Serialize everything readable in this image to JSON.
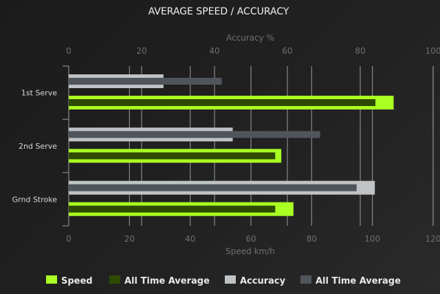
{
  "chart_data": {
    "type": "bar",
    "title": "AVERAGE SPEED / ACCURACY",
    "orientation": "horizontal",
    "categories": [
      "1st Serve",
      "2nd Serve",
      "Grnd Stroke"
    ],
    "top_axis": {
      "label": "Accuracy %",
      "range": [
        0,
        100
      ],
      "ticks": [
        0,
        20,
        40,
        60,
        80,
        100
      ]
    },
    "bottom_axis": {
      "label": "Speed km/h",
      "range": [
        0,
        120
      ],
      "ticks": [
        0,
        20,
        40,
        60,
        80,
        100,
        120
      ]
    },
    "grid": true,
    "legend_position": "bottom",
    "series": [
      {
        "name": "Speed",
        "axis": "bottom",
        "color": "#aaff22",
        "values": [
          107,
          70,
          74
        ]
      },
      {
        "name": "All Time Average",
        "axis": "bottom",
        "color": "#2e4a00",
        "values": [
          101,
          68,
          68
        ]
      },
      {
        "name": "Accuracy",
        "axis": "top",
        "color": "#bfc3c5",
        "values": [
          26,
          45,
          84
        ]
      },
      {
        "name": "All Time Average",
        "axis": "top",
        "color": "#50555c",
        "values": [
          42,
          69,
          79
        ]
      }
    ]
  }
}
